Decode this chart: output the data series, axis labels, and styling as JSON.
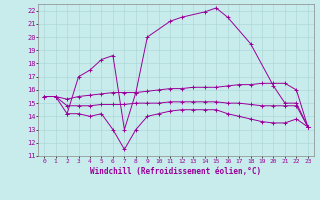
{
  "background_color": "#c8ecec",
  "line_color": "#990099",
  "grid_color": "#b0d8d8",
  "xlabel": "Windchill (Refroidissement éolien,°C)",
  "xlim": [
    -0.5,
    23.5
  ],
  "ylim": [
    11,
    22.5
  ],
  "yticks": [
    11,
    12,
    13,
    14,
    15,
    16,
    17,
    18,
    19,
    20,
    21,
    22
  ],
  "xticks": [
    0,
    1,
    2,
    3,
    4,
    5,
    6,
    7,
    8,
    9,
    10,
    11,
    12,
    13,
    14,
    15,
    16,
    17,
    18,
    19,
    20,
    21,
    22,
    23
  ],
  "series": [
    {
      "x": [
        2,
        3,
        4,
        5,
        6,
        7,
        8,
        9,
        11,
        12,
        14,
        15,
        16,
        18,
        20,
        21,
        22,
        23
      ],
      "y": [
        14.2,
        17.0,
        17.5,
        18.3,
        18.6,
        13.0,
        15.8,
        20.0,
        21.2,
        21.5,
        21.9,
        22.2,
        21.5,
        19.5,
        16.3,
        15.0,
        15.0,
        13.2
      ]
    },
    {
      "x": [
        0,
        1,
        2,
        3,
        4,
        5,
        6,
        7,
        8,
        9,
        10,
        11,
        12,
        13,
        14,
        15,
        16,
        17,
        18,
        19,
        20,
        21,
        22,
        23
      ],
      "y": [
        15.5,
        15.5,
        15.3,
        15.5,
        15.6,
        15.7,
        15.8,
        15.8,
        15.8,
        15.9,
        16.0,
        16.1,
        16.1,
        16.2,
        16.2,
        16.2,
        16.3,
        16.4,
        16.4,
        16.5,
        16.5,
        16.5,
        16.0,
        13.2
      ]
    },
    {
      "comment": "middle line - starts 15.5, stays ~14.5-15.2, ends ~13.2",
      "x": [
        0,
        1,
        2,
        3,
        4,
        5,
        6,
        7,
        8,
        9,
        10,
        11,
        12,
        13,
        14,
        15,
        16,
        17,
        18,
        19,
        20,
        21,
        22,
        23
      ],
      "y": [
        15.5,
        15.5,
        14.8,
        14.8,
        14.8,
        14.9,
        14.9,
        14.9,
        15.0,
        15.0,
        15.0,
        15.1,
        15.1,
        15.1,
        15.1,
        15.1,
        15.0,
        15.0,
        14.9,
        14.8,
        14.8,
        14.8,
        14.8,
        13.2
      ]
    },
    {
      "x": [
        0,
        1,
        2,
        3,
        4,
        5,
        6,
        7,
        8,
        9,
        10,
        11,
        12,
        13,
        14,
        15,
        16,
        17,
        18,
        19,
        20,
        21,
        22,
        23
      ],
      "y": [
        15.5,
        15.5,
        14.2,
        14.2,
        14.0,
        14.2,
        13.0,
        11.5,
        13.0,
        14.0,
        14.2,
        14.4,
        14.5,
        14.5,
        14.5,
        14.5,
        14.2,
        14.0,
        13.8,
        13.6,
        13.5,
        13.5,
        13.8,
        13.2
      ]
    }
  ]
}
